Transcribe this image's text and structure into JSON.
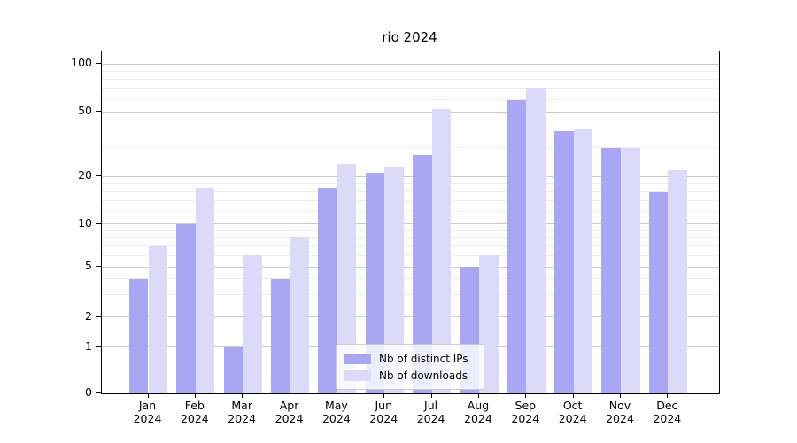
{
  "title": "rio 2024",
  "chart_data": {
    "type": "bar",
    "title": "rio 2024",
    "categories": [
      "Jan",
      "Feb",
      "Mar",
      "Apr",
      "May",
      "Jun",
      "Jul",
      "Aug",
      "Sep",
      "Oct",
      "Nov",
      "Dec"
    ],
    "year_suffix": "2024",
    "series": [
      {
        "name": "Nb of distinct IPs",
        "color": "#a9a6f4",
        "values": [
          4,
          10,
          1,
          4,
          17,
          21,
          27,
          5,
          59,
          38,
          30,
          16
        ]
      },
      {
        "name": "Nb of downloads",
        "color": "#dcdaf8",
        "values": [
          7,
          17,
          6,
          8,
          24,
          23,
          52,
          6,
          71,
          39,
          30,
          22
        ]
      }
    ],
    "xlabel": "",
    "ylabel": "",
    "y_scale": "log (1-2-5 tick progression)",
    "y_major_ticks": [
      0,
      1,
      2,
      5,
      10,
      20,
      50,
      100
    ],
    "y_minor_gridlines": [
      3,
      4,
      6,
      7,
      8,
      9,
      12,
      14,
      16,
      18,
      30,
      40,
      60,
      70,
      80,
      90
    ],
    "ylim": [
      0,
      115
    ],
    "grid": true,
    "legend_position": "lower center"
  },
  "colors": {
    "background": "#ffffff",
    "axis": "#000000",
    "major_grid": "#c9c9c9",
    "minor_grid": "#ededed",
    "distinct_ips": "#a9a6f4",
    "downloads": "#dcdaf8"
  }
}
